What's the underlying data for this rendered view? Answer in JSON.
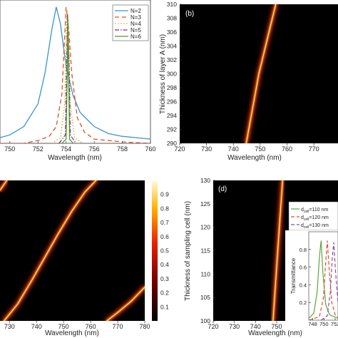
{
  "chart_data": [
    {
      "panel": "a",
      "type": "line",
      "xlabel": "Wavelength (nm)",
      "xlim": [
        749.3,
        760
      ],
      "ylim": [
        0,
        1
      ],
      "xticks": [
        750,
        752,
        754,
        756,
        758,
        760
      ],
      "series": [
        {
          "name": "N=2",
          "color": "#3b93c9",
          "dash": "solid",
          "x": [
            749.3,
            750,
            751,
            752,
            752.5,
            753,
            753.3,
            753.6,
            754,
            754.5,
            755,
            756,
            757,
            758,
            759,
            760
          ],
          "y": [
            0.04,
            0.06,
            0.12,
            0.28,
            0.5,
            0.82,
            0.97,
            0.85,
            0.55,
            0.34,
            0.22,
            0.12,
            0.07,
            0.05,
            0.04,
            0.03
          ]
        },
        {
          "name": "N=3",
          "color": "#e0502a",
          "dash": "6,4",
          "x": [
            749.3,
            751,
            752,
            752.8,
            753.3,
            753.7,
            754.0,
            754.2,
            754.4,
            754.8,
            755.3,
            756,
            758,
            760
          ],
          "y": [
            0.0,
            0.0,
            0.02,
            0.05,
            0.12,
            0.35,
            0.97,
            0.8,
            0.5,
            0.18,
            0.08,
            0.03,
            0.01,
            0.0
          ]
        },
        {
          "name": "N=4",
          "color": "#d8a31c",
          "dash": "1.5,2.5",
          "x": [
            753.0,
            753.6,
            753.9,
            754.05,
            754.15,
            754.3,
            754.6,
            755.2
          ],
          "y": [
            0.0,
            0.04,
            0.28,
            0.95,
            0.88,
            0.28,
            0.04,
            0.0
          ]
        },
        {
          "name": "N=5",
          "color": "#7d2f8e",
          "dash": "6,2,1.5,2",
          "x": [
            753.5,
            753.95,
            754.05,
            754.1,
            754.2,
            754.3,
            754.7
          ],
          "y": [
            0.0,
            0.06,
            0.6,
            0.92,
            0.6,
            0.06,
            0.0
          ]
        },
        {
          "name": "N=6",
          "color": "#4c9a2a",
          "dash": "solid",
          "x": [
            753.7,
            754.0,
            754.08,
            754.12,
            754.18,
            754.25,
            754.5
          ],
          "y": [
            0.0,
            0.03,
            0.5,
            0.9,
            0.5,
            0.03,
            0.0
          ]
        }
      ]
    },
    {
      "panel": "b",
      "type": "heatmap",
      "label": "(b)",
      "xlabel": "Wavelength (nm)",
      "ylabel": "Thickness of layer A (nm)",
      "xlim": [
        720,
        779
      ],
      "ylim": [
        290,
        310
      ],
      "xticks": [
        720,
        730,
        740,
        750,
        760,
        770
      ],
      "yticks": [
        290,
        292,
        294,
        296,
        298,
        300,
        302,
        304,
        306,
        308,
        310
      ],
      "ridges": [
        {
          "x": [
            744.8,
            749.5,
            755.8
          ],
          "y": [
            290,
            300,
            310
          ]
        }
      ]
    },
    {
      "panel": "c",
      "type": "heatmap",
      "xlabel": "Wavelength (nm)",
      "xlim": [
        726.5,
        780
      ],
      "xticks": [
        730,
        740,
        750,
        760,
        770,
        780
      ],
      "colorbar_ticks": [
        0.1,
        0.2,
        0.3,
        0.4,
        0.5,
        0.6,
        0.7,
        0.8,
        0.9
      ],
      "ridges": [
        {
          "x": [
            728,
            733,
            738,
            743,
            748,
            753,
            758,
            762
          ],
          "y": [
            0.0,
            0.12,
            0.28,
            0.45,
            0.62,
            0.78,
            0.92,
            1.0
          ]
        },
        {
          "x": [
            766,
            770,
            775,
            780
          ],
          "y": [
            0.0,
            0.06,
            0.14,
            0.24
          ]
        },
        {
          "x": [
            726.5,
            729
          ],
          "y": [
            0.93,
            1.0
          ]
        }
      ]
    },
    {
      "panel": "d",
      "type": "heatmap",
      "label": "(d)",
      "xlabel": "Wavelength (nm)",
      "ylabel": "Thickness of sampling cell (nm)",
      "xlim": [
        720,
        779
      ],
      "ylim": [
        100,
        130
      ],
      "xticks": [
        720,
        730,
        740,
        750,
        760,
        770
      ],
      "yticks": [
        100,
        105,
        110,
        115,
        120,
        125,
        130
      ],
      "ridges": [
        {
          "x": [
            748.3,
            750.5,
            752.8
          ],
          "y": [
            100,
            115,
            130
          ]
        }
      ],
      "inset": {
        "type": "line",
        "ylabel": "Transmittance",
        "xlim": [
          747.3,
          752.5
        ],
        "ylim": [
          0,
          1
        ],
        "xticks": [
          748,
          750,
          752
        ],
        "yticks": [
          0.2,
          0.4,
          0.6,
          0.8
        ],
        "series": [
          {
            "legend_main": "d",
            "legend_sub": "cell",
            "legend_rest": "=110 nm",
            "color": "#5aa73c",
            "dash": "solid",
            "x": [
              747.3,
              748.2,
              748.8,
              749.2,
              749.5,
              749.8,
              750.3,
              751,
              752.5
            ],
            "y": [
              0.02,
              0.08,
              0.32,
              0.72,
              0.9,
              0.55,
              0.18,
              0.06,
              0.02
            ]
          },
          {
            "legend_main": "d",
            "legend_sub": "cell",
            "legend_rest": "=120 nm",
            "color": "#e0502a",
            "dash": "5,3",
            "x": [
              747.3,
              749.2,
              749.9,
              750.3,
              750.6,
              750.9,
              751.4,
              752,
              752.5
            ],
            "y": [
              0.0,
              0.04,
              0.25,
              0.65,
              0.9,
              0.6,
              0.2,
              0.06,
              0.03
            ]
          },
          {
            "legend_main": "d",
            "legend_sub": "cell",
            "legend_rest": "=130 nm",
            "color": "#8e4aa8",
            "dash": "5,3",
            "x": [
              749.5,
              750.6,
              751.1,
              751.5,
              751.75,
              752.0,
              752.5
            ],
            "y": [
              0.0,
              0.05,
              0.3,
              0.72,
              0.88,
              0.6,
              0.2
            ]
          }
        ]
      }
    }
  ]
}
